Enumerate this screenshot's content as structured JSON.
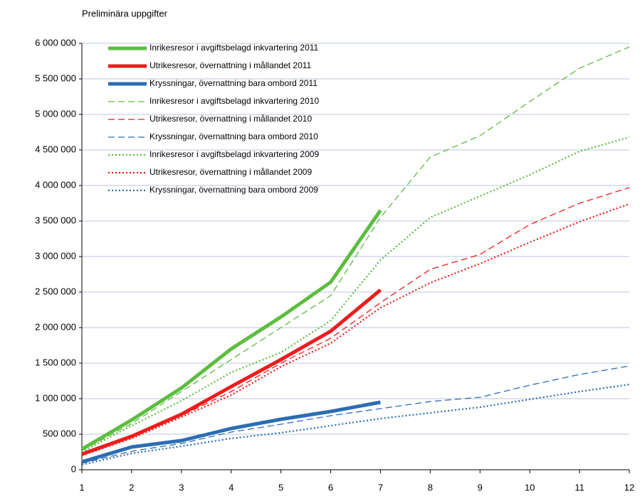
{
  "chart_data": {
    "type": "line",
    "title": "Preliminära uppgifter",
    "x": [
      1,
      2,
      3,
      4,
      5,
      6,
      7,
      8,
      9,
      10,
      11,
      12
    ],
    "xlim": [
      1,
      12
    ],
    "xticks": [
      1,
      2,
      3,
      4,
      5,
      6,
      7,
      8,
      9,
      10,
      11,
      12
    ],
    "ylim": [
      0,
      6000000
    ],
    "yticks": [
      0,
      {
        "value": 500000,
        "label": "500 000"
      },
      {
        "value": 1000000,
        "label": "1 000 000"
      },
      {
        "value": 1500000,
        "label": "1 500 000"
      },
      {
        "value": 2000000,
        "label": "2 000 000"
      },
      {
        "value": 2500000,
        "label": "2 500 000"
      },
      {
        "value": 3000000,
        "label": "3 000 000"
      },
      {
        "value": 3500000,
        "label": "3 500 000"
      },
      {
        "value": 4000000,
        "label": "4 000 000"
      },
      {
        "value": 4500000,
        "label": "4 500 000"
      },
      {
        "value": 5000000,
        "label": "5 000 000"
      },
      {
        "value": 5500000,
        "label": "5 500 000"
      },
      {
        "value": 6000000,
        "label": "6 000 000"
      }
    ],
    "grid": true,
    "legend": "top-left",
    "series": [
      {
        "name": "Inrikesresor i avgiftsbelagd inkvartering 2011",
        "color": "#5cbd3f",
        "dash": "solid",
        "width": 5,
        "values": [
          290000,
          700000,
          1150000,
          1700000,
          2150000,
          2640000,
          3650000,
          null,
          null,
          null,
          null,
          null
        ]
      },
      {
        "name": "Utrikesresor, övernattning i mållandet 2011",
        "color": "#ee1c1c",
        "dash": "solid",
        "width": 5,
        "values": [
          220000,
          470000,
          780000,
          1170000,
          1550000,
          1950000,
          2530000,
          null,
          null,
          null,
          null,
          null
        ]
      },
      {
        "name": "Kryssningar, övernattning bara ombord 2011",
        "color": "#2b6db3",
        "dash": "solid",
        "width": 5,
        "values": [
          110000,
          320000,
          410000,
          580000,
          710000,
          820000,
          950000,
          null,
          null,
          null,
          null,
          null
        ]
      },
      {
        "name": "Inrikesresor i avgiftsbelagd inkvartering 2010",
        "color": "#5cbd3f",
        "dash": "dashed",
        "width": 1.3,
        "values": [
          270000,
          650000,
          1100000,
          1550000,
          2000000,
          2450000,
          3550000,
          4400000,
          4700000,
          5180000,
          5650000,
          5950000
        ]
      },
      {
        "name": "Utrikesresor, övernattning i mållandet 2010",
        "color": "#ee1c1c",
        "dash": "dashed",
        "width": 1.3,
        "values": [
          220000,
          460000,
          760000,
          1100000,
          1500000,
          1850000,
          2350000,
          2820000,
          3030000,
          3450000,
          3750000,
          3970000
        ]
      },
      {
        "name": "Kryssningar, övernattning bara ombord 2010",
        "color": "#2b6db3",
        "dash": "dashed",
        "width": 1.3,
        "values": [
          90000,
          260000,
          370000,
          530000,
          640000,
          760000,
          860000,
          960000,
          1020000,
          1190000,
          1340000,
          1460000
        ]
      },
      {
        "name": "Inrikesresor i avgiftsbelagd inkvartering 2009",
        "color": "#5cbd3f",
        "dash": "dotted",
        "width": 2.2,
        "values": [
          250000,
          620000,
          970000,
          1370000,
          1650000,
          2100000,
          2950000,
          3550000,
          3850000,
          4150000,
          4480000,
          4680000
        ]
      },
      {
        "name": "Utrikesresor, övernattning i mållandet 2009",
        "color": "#ee1c1c",
        "dash": "dotted",
        "width": 2.2,
        "values": [
          200000,
          440000,
          740000,
          1050000,
          1450000,
          1780000,
          2280000,
          2630000,
          2900000,
          3200000,
          3490000,
          3740000
        ]
      },
      {
        "name": "Kryssningar, övernattning bara ombord 2009",
        "color": "#2b6db3",
        "dash": "dotted",
        "width": 2.2,
        "values": [
          70000,
          230000,
          330000,
          440000,
          520000,
          620000,
          720000,
          800000,
          880000,
          990000,
          1100000,
          1200000
        ]
      }
    ]
  }
}
